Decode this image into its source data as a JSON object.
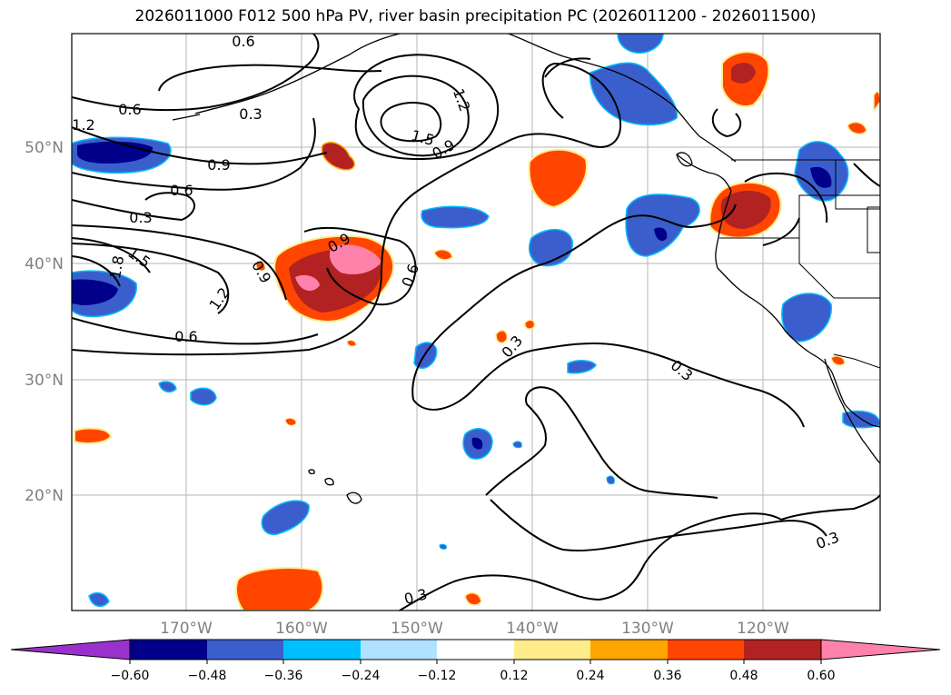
{
  "title": "2026011000 F012 500 hPa PV, river basin precipitation PC (2026011200 - 2026011500)",
  "axes": {
    "lat_labels": [
      "50°N",
      "40°N",
      "30°N",
      "20°N"
    ],
    "lon_labels": [
      "170°W",
      "160°W",
      "150°W",
      "140°W",
      "130°W",
      "120°W"
    ]
  },
  "pv_contour_labels": [
    "0.6",
    "0.6",
    "1.2",
    "0.3",
    "1.2",
    "1.5",
    "0.9",
    "0.9",
    "0.6",
    "0.3",
    "1.5",
    "1.8",
    "0.9",
    "1.2",
    "0.9",
    "0.6",
    "0.6",
    "0.3",
    "0.3",
    "0.3",
    "0.3"
  ],
  "colorbar": {
    "ticks": [
      "−0.60",
      "−0.48",
      "−0.36",
      "−0.24",
      "−0.12",
      "0.12",
      "0.24",
      "0.36",
      "0.48",
      "0.60"
    ],
    "colors": [
      "#9932cc",
      "#00008b",
      "#3a5fcd",
      "#00bfff",
      "#b0e2ff",
      "#ffffff",
      "#ffec8b",
      "#ffa500",
      "#ff4500",
      "#b22222",
      "#ff82ab"
    ]
  }
}
